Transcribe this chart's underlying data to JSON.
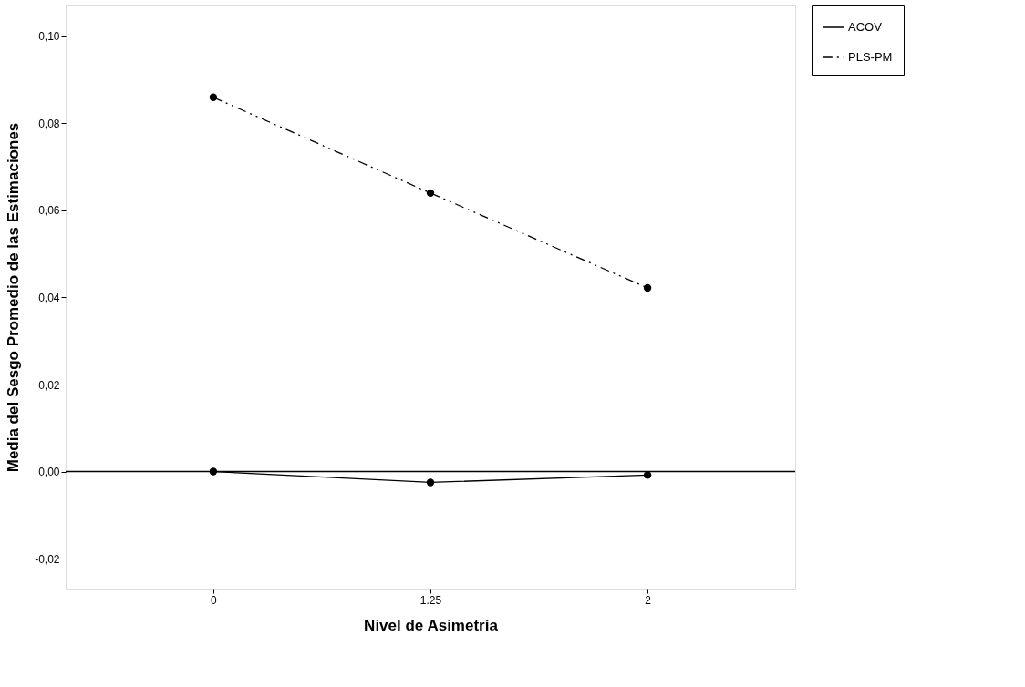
{
  "chart_data": {
    "type": "line",
    "xlabel": "Nivel de Asimetría",
    "ylabel": "Media del Sesgo Promedio de las Estimaciones",
    "categories": [
      "0",
      "1.25",
      "2"
    ],
    "series": [
      {
        "name": "ACOV",
        "color": "#000000",
        "line_style": "solid",
        "values": [
          0.0,
          -0.0025,
          -0.0008
        ]
      },
      {
        "name": "PLS-PM",
        "color": "#000000",
        "line_style": "dashed",
        "values": [
          0.086,
          0.064,
          0.0422
        ]
      }
    ],
    "ylim": [
      -0.0269,
      0.1071
    ],
    "yticks": [
      {
        "value": -0.02,
        "label": "-0,02"
      },
      {
        "value": 0.0,
        "label": "0,00"
      },
      {
        "value": 0.02,
        "label": "0,02"
      },
      {
        "value": 0.04,
        "label": "0,04"
      },
      {
        "value": 0.06,
        "label": "0,06"
      },
      {
        "value": 0.08,
        "label": "0,08"
      },
      {
        "value": 0.1,
        "label": "0,10"
      }
    ],
    "ref_lines": [
      {
        "axis": "y",
        "value": 0.0,
        "label": null,
        "color": "#000000"
      }
    ],
    "grid": false,
    "legend": "top right",
    "marker": "circle"
  }
}
